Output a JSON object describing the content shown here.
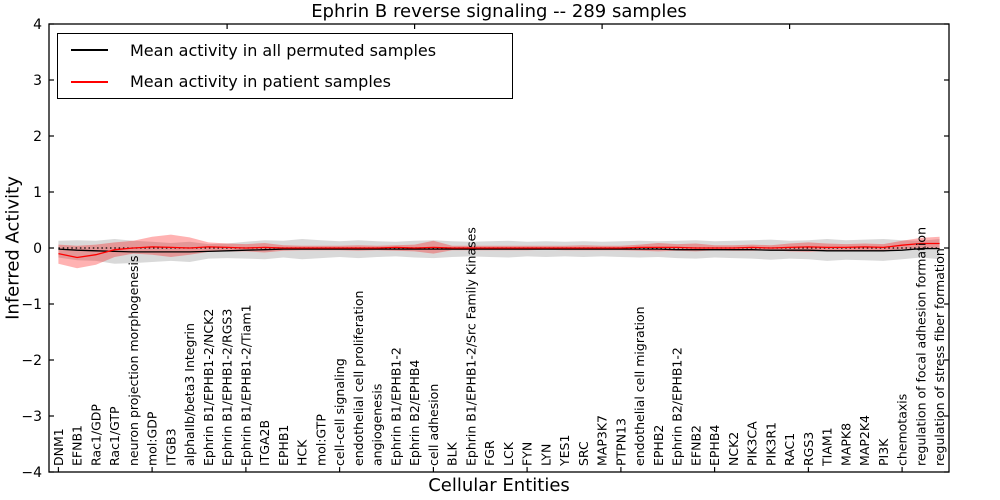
{
  "chart_data": {
    "type": "line",
    "title": "Ephrin B reverse signaling -- 289 samples",
    "xlabel": "Cellular Entities",
    "ylabel": "Inferred Activity",
    "ylim": [
      -4,
      4
    ],
    "yticks": [
      4,
      3,
      2,
      1,
      0,
      -1,
      -2,
      -3,
      -4
    ],
    "ytick_labels": [
      "4",
      "3",
      "2",
      "1",
      "0",
      "−1",
      "−2",
      "−3",
      "−4"
    ],
    "grid": false,
    "legend_position": "upper left",
    "categories": [
      "DNM1",
      "EFNB1",
      "Rac1/GDP",
      "Rac1/GTP",
      "neuron projection morphogenesis",
      "mol:GDP",
      "ITGB3",
      "alphaIIb/beta3 Integrin",
      "Ephrin B1/EPHB1-2/NCK2",
      "Ephrin B1/EPHB1-2/RGS3",
      "Ephrin B1/EPHB1-2/Tiam1",
      "ITGA2B",
      "EPHB1",
      "HCK",
      "mol:GTP",
      "cell-cell signaling",
      "endothelial cell proliferation",
      "angiogenesis",
      "Ephrin B1/EPHB1-2",
      "Ephrin B2/EPHB4",
      "cell adhesion",
      "BLK",
      "Ephrin B1/EPHB1-2/Src Family Kinases",
      "FGR",
      "LCK",
      "FYN",
      "LYN",
      "YES1",
      "SRC",
      "MAP3K7",
      "PTPN13",
      "endothelial cell migration",
      "EPHB2",
      "Ephrin B2/EPHB1-2",
      "EFNB2",
      "EPHB4",
      "NCK2",
      "PIK3CA",
      "PIK3R1",
      "RAC1",
      "RGS3",
      "TIAM1",
      "MAPK8",
      "MAP2K4",
      "PI3K",
      "chemotaxis",
      "regulation of focal adhesion formation",
      "regulation of stress fiber formation"
    ],
    "series": [
      {
        "name": "Mean activity in all permuted samples",
        "color": "#000000",
        "style": "solid",
        "values": [
          -0.02,
          -0.04,
          -0.05,
          -0.06,
          -0.07,
          -0.07,
          -0.07,
          -0.07,
          -0.06,
          -0.05,
          -0.04,
          -0.03,
          -0.02,
          -0.02,
          -0.02,
          -0.02,
          -0.02,
          -0.02,
          -0.02,
          -0.02,
          -0.02,
          -0.02,
          -0.02,
          -0.02,
          -0.02,
          -0.02,
          -0.02,
          -0.02,
          -0.02,
          -0.02,
          -0.02,
          -0.02,
          -0.02,
          -0.03,
          -0.03,
          -0.03,
          -0.03,
          -0.03,
          -0.04,
          -0.04,
          -0.04,
          -0.05,
          -0.05,
          -0.05,
          -0.05,
          -0.04,
          -0.01,
          -0.01
        ]
      },
      {
        "name": "Mean activity in patient samples",
        "color": "#ff0000",
        "style": "solid",
        "values": [
          -0.1,
          -0.17,
          -0.12,
          -0.03,
          0.0,
          0.02,
          0.01,
          0.0,
          0.02,
          0.01,
          0.0,
          0.01,
          0.0,
          0.0,
          0.0,
          0.0,
          0.0,
          0.0,
          0.01,
          0.0,
          0.01,
          0.0,
          0.0,
          0.0,
          0.0,
          0.0,
          0.0,
          0.0,
          0.0,
          0.0,
          0.0,
          0.01,
          0.01,
          0.01,
          0.0,
          0.0,
          0.0,
          0.01,
          0.0,
          0.01,
          0.02,
          0.01,
          0.01,
          0.02,
          0.01,
          0.05,
          0.08,
          0.08
        ]
      }
    ],
    "bands": [
      {
        "name": "permuted-spread",
        "color": "#808080",
        "opacity": 0.3,
        "upper": [
          0.13,
          0.14,
          0.13,
          0.16,
          0.13,
          0.11,
          0.09,
          0.11,
          0.07,
          0.08,
          0.11,
          0.14,
          0.13,
          0.16,
          0.14,
          0.12,
          0.14,
          0.12,
          0.11,
          0.13,
          0.14,
          0.12,
          0.11,
          0.12,
          0.13,
          0.11,
          0.12,
          0.11,
          0.12,
          0.11,
          0.12,
          0.13,
          0.12,
          0.13,
          0.14,
          0.12,
          0.13,
          0.14,
          0.15,
          0.13,
          0.14,
          0.16,
          0.14,
          0.15,
          0.16,
          0.14,
          0.13,
          0.16
        ],
        "lower": [
          -0.17,
          -0.22,
          -0.23,
          -0.28,
          -0.27,
          -0.25,
          -0.23,
          -0.25,
          -0.19,
          -0.18,
          -0.19,
          -0.2,
          -0.17,
          -0.2,
          -0.18,
          -0.16,
          -0.18,
          -0.16,
          -0.15,
          -0.17,
          -0.18,
          -0.16,
          -0.15,
          -0.16,
          -0.17,
          -0.15,
          -0.16,
          -0.15,
          -0.16,
          -0.15,
          -0.16,
          -0.17,
          -0.16,
          -0.18,
          -0.19,
          -0.17,
          -0.18,
          -0.19,
          -0.21,
          -0.19,
          -0.2,
          -0.23,
          -0.21,
          -0.22,
          -0.23,
          -0.2,
          -0.17,
          -0.2
        ]
      },
      {
        "name": "patient-spread",
        "color": "#ff0000",
        "opacity": 0.3,
        "upper": [
          0.06,
          0.04,
          0.06,
          0.1,
          0.13,
          0.2,
          0.24,
          0.19,
          0.1,
          0.08,
          0.07,
          0.09,
          0.05,
          0.04,
          0.04,
          0.04,
          0.05,
          0.04,
          0.05,
          0.06,
          0.13,
          0.04,
          0.04,
          0.04,
          0.04,
          0.04,
          0.04,
          0.04,
          0.05,
          0.04,
          0.04,
          0.06,
          0.09,
          0.07,
          0.08,
          0.05,
          0.05,
          0.06,
          0.05,
          0.08,
          0.1,
          0.08,
          0.07,
          0.08,
          0.07,
          0.13,
          0.18,
          0.2
        ],
        "lower": [
          -0.28,
          -0.36,
          -0.3,
          -0.16,
          -0.1,
          -0.12,
          -0.16,
          -0.12,
          -0.07,
          -0.06,
          -0.06,
          -0.08,
          -0.05,
          -0.04,
          -0.04,
          -0.04,
          -0.05,
          -0.04,
          -0.05,
          -0.06,
          -0.1,
          -0.04,
          -0.04,
          -0.04,
          -0.04,
          -0.04,
          -0.03,
          -0.04,
          -0.04,
          -0.04,
          -0.04,
          -0.05,
          -0.06,
          -0.05,
          -0.06,
          -0.04,
          -0.05,
          -0.05,
          -0.04,
          -0.06,
          -0.07,
          -0.05,
          -0.05,
          -0.06,
          -0.05,
          -0.02,
          0.0,
          -0.02
        ]
      }
    ],
    "zero_line": {
      "value": 0,
      "style": "dotted",
      "color": "#000000"
    }
  },
  "legend": {
    "entries": [
      {
        "label": "Mean activity in all permuted samples",
        "color": "#000000"
      },
      {
        "label": "Mean activity in patient samples",
        "color": "#ff0000"
      }
    ]
  }
}
